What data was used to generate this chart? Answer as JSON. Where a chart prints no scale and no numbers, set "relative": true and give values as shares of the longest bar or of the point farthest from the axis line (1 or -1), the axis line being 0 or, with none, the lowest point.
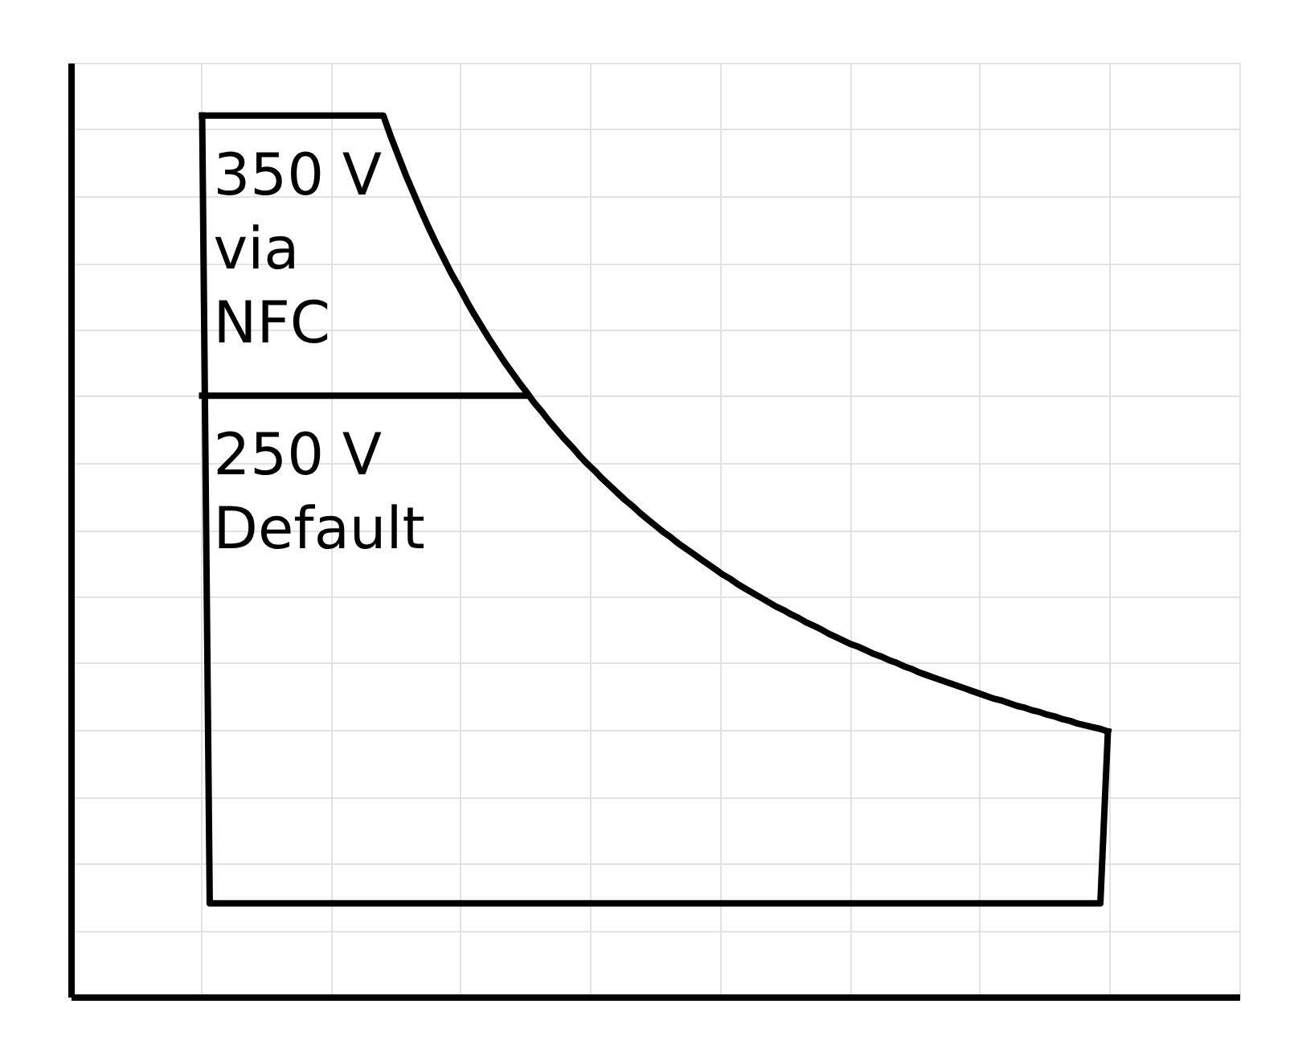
{
  "chart_data": {
    "type": "line",
    "relative": true,
    "categories": [
      null,
      null,
      null,
      null,
      null,
      null,
      null,
      null,
      null,
      null,
      null,
      null,
      null,
      null,
      null,
      null,
      null,
      null,
      null,
      null,
      null,
      null,
      null,
      null,
      null,
      null,
      null,
      null,
      null,
      null,
      null,
      null,
      null,
      null,
      null,
      null,
      null,
      null,
      null,
      null,
      null,
      null,
      null,
      null,
      null,
      null,
      null,
      null,
      null,
      null,
      null,
      null,
      null,
      null,
      null,
      null,
      null,
      null,
      null,
      null,
      null,
      null,
      null,
      null,
      null,
      null,
      null,
      null,
      null,
      null,
      null,
      null,
      null,
      null,
      null,
      null,
      null,
      null,
      null,
      null,
      null,
      null,
      null,
      null,
      null,
      null,
      null,
      null,
      null,
      null,
      null,
      null,
      null,
      null,
      null,
      null,
      null,
      null,
      null,
      null,
      null,
      null,
      null,
      null,
      null,
      null,
      null,
      null,
      null,
      null,
      null,
      null,
      null,
      null,
      null,
      null,
      null,
      null,
      null,
      null,
      null
    ],
    "series": [
      {
        "color": "#000000",
        "values": [
          1,
          1,
          1,
          1,
          1,
          1,
          1,
          1,
          1,
          1,
          1,
          1,
          1,
          1,
          1,
          1,
          1,
          1,
          1,
          1,
          1,
          1,
          1,
          1,
          1,
          0.976,
          0.954,
          0.932,
          0.912,
          0.892,
          0.873,
          0.855,
          0.838,
          0.821,
          0.806,
          0.79,
          0.775,
          0.761,
          0.747,
          0.734,
          0.721,
          0.709,
          0.697,
          0.686,
          0.674,
          0.664,
          0.653,
          0.643,
          0.633,
          0.624,
          0.614,
          0.605,
          0.597,
          0.588,
          0.58,
          0.572,
          0.564,
          0.557,
          0.549,
          0.542,
          0.535,
          0.528,
          0.522,
          0.515,
          0.509,
          0.503,
          0.497,
          0.491,
          0.485,
          0.479,
          0.474,
          0.468,
          0.463,
          0.458,
          0.453,
          0.448,
          0.443,
          0.439,
          0.434,
          0.43,
          0.425,
          0.421,
          0.417,
          0.412,
          0.408,
          0.404,
          0.4,
          0.397,
          0.393,
          0.389,
          0.386,
          0.382,
          0.379,
          0.375,
          0.372,
          0.368,
          0.365,
          0.362,
          0.359,
          0.356,
          0.353,
          0.35,
          0.347,
          0.344,
          0.341,
          0.338,
          0.336,
          0.333,
          0.33,
          0.328,
          0.325,
          0.323,
          0.32,
          0.318,
          0.315,
          0.313,
          0.31,
          0.308,
          0.306,
          0.304,
          0.301
        ]
      },
      {
        "color": "#000000",
        "values": [
          1,
          0.106,
          0.106,
          0.106,
          0.106,
          0.106,
          0.106,
          0.106,
          0.106,
          0.106,
          0.106,
          0.106,
          0.106,
          0.106,
          0.106,
          0.106,
          0.106,
          0.106,
          0.106,
          0.106,
          0.106,
          0.106,
          0.106,
          0.106,
          0.106,
          0.106,
          0.106,
          0.106,
          0.106,
          0.106,
          0.106,
          0.106,
          0.106,
          0.106,
          0.106,
          0.106,
          0.106,
          0.106,
          0.106,
          0.106,
          0.106,
          0.106,
          0.106,
          0.106,
          0.106,
          0.106,
          0.106,
          0.106,
          0.106,
          0.106,
          0.106,
          0.106,
          0.106,
          0.106,
          0.106,
          0.106,
          0.106,
          0.106,
          0.106,
          0.106,
          0.106,
          0.106,
          0.106,
          0.106,
          0.106,
          0.106,
          0.106,
          0.106,
          0.106,
          0.106,
          0.106,
          0.106,
          0.106,
          0.106,
          0.106,
          0.106,
          0.106,
          0.106,
          0.106,
          0.106,
          0.106,
          0.106,
          0.106,
          0.106,
          0.106,
          0.106,
          0.106,
          0.106,
          0.106,
          0.106,
          0.106,
          0.106,
          0.106,
          0.106,
          0.106,
          0.106,
          0.106,
          0.106,
          0.106,
          0.106,
          0.106,
          0.106,
          0.106,
          0.106,
          0.106,
          0.106,
          0.106,
          0.106,
          0.106,
          0.106,
          0.106,
          0.106,
          0.106,
          0.106,
          0.106,
          0.106,
          0.106,
          0.106,
          0.106,
          0.106,
          0.301
        ]
      },
      {
        "color": "#000000",
        "values": [
          0.682,
          0.682,
          0.682,
          0.682,
          0.682,
          0.682,
          0.682,
          0.682,
          0.682,
          0.682,
          0.682,
          0.682,
          0.682,
          0.682,
          0.682,
          0.682,
          0.682,
          0.682,
          0.682,
          0.682,
          0.682,
          0.682,
          0.682,
          0.682,
          0.682,
          0.682,
          0.682,
          0.682,
          0.682,
          0.682,
          0.682,
          0.682,
          0.682,
          0.682,
          0.682,
          0.682,
          0.682,
          0.682,
          0.682,
          0.682,
          0.682,
          0.682,
          0.682,
          0.682,
          null,
          null,
          null,
          null,
          null,
          null,
          null,
          null,
          null,
          null,
          null,
          null,
          null,
          null,
          null,
          null,
          null,
          null,
          null,
          null,
          null,
          null,
          null,
          null,
          null,
          null,
          null,
          null,
          null,
          null,
          null,
          null,
          null,
          null,
          null,
          null,
          null,
          null,
          null,
          null,
          null,
          null,
          null,
          null,
          null,
          null,
          null,
          null,
          null,
          null,
          null,
          null,
          null,
          null,
          null,
          null,
          null,
          null,
          null,
          null,
          null,
          null,
          null,
          null,
          null,
          null,
          null,
          null,
          null,
          null,
          null,
          null,
          null,
          null,
          null,
          null,
          null
        ]
      }
    ],
    "annotations": [
      {
        "text": "350 V\nvia\nNFC",
        "y": 1
      },
      {
        "text": "250 V\nDefault",
        "y": 0.682
      }
    ],
    "grid": true,
    "tick_labels": false
  }
}
